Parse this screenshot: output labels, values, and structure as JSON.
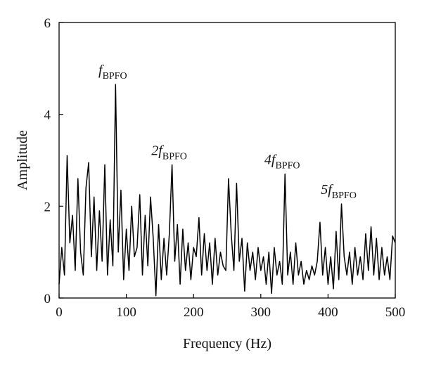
{
  "chart_data": {
    "type": "line",
    "x_label": "Frequency (Hz)",
    "y_label": "Amplitude",
    "xlim": [
      0,
      500
    ],
    "xticks": [
      0,
      100,
      200,
      300,
      400,
      500
    ],
    "ylim": [
      0,
      6
    ],
    "yticks": [
      0,
      2,
      4,
      6
    ],
    "color": "#000000",
    "x": [
      0,
      4,
      8,
      12,
      16,
      20,
      24,
      28,
      32,
      36,
      40,
      44,
      48,
      52,
      56,
      60,
      64,
      68,
      72,
      76,
      80,
      84,
      88,
      92,
      96,
      100,
      104,
      108,
      112,
      116,
      120,
      124,
      128,
      132,
      136,
      140,
      144,
      148,
      152,
      156,
      160,
      164,
      168,
      172,
      176,
      180,
      184,
      188,
      192,
      196,
      200,
      204,
      208,
      212,
      216,
      220,
      224,
      228,
      232,
      236,
      240,
      244,
      248,
      252,
      256,
      260,
      264,
      268,
      272,
      276,
      280,
      284,
      288,
      292,
      296,
      300,
      304,
      308,
      312,
      316,
      320,
      324,
      328,
      332,
      336,
      340,
      344,
      348,
      352,
      356,
      360,
      364,
      368,
      372,
      376,
      380,
      384,
      388,
      392,
      396,
      400,
      404,
      408,
      412,
      416,
      420,
      424,
      428,
      432,
      436,
      440,
      444,
      448,
      452,
      456,
      460,
      464,
      468,
      472,
      476,
      480,
      484,
      488,
      492,
      496,
      500
    ],
    "values": [
      0.3,
      1.1,
      0.5,
      3.1,
      1.2,
      1.8,
      0.6,
      2.6,
      1.0,
      0.5,
      2.4,
      2.95,
      0.9,
      2.2,
      0.6,
      1.9,
      0.8,
      2.9,
      0.5,
      1.7,
      0.7,
      4.65,
      1.0,
      2.35,
      0.4,
      1.5,
      0.6,
      2.0,
      0.9,
      1.1,
      2.25,
      0.5,
      1.8,
      0.7,
      2.2,
      1.3,
      0.05,
      1.6,
      0.4,
      1.3,
      0.5,
      1.4,
      2.9,
      0.8,
      1.6,
      0.3,
      1.5,
      0.6,
      1.2,
      0.4,
      1.1,
      0.9,
      1.75,
      0.5,
      1.4,
      0.6,
      1.2,
      0.3,
      1.3,
      0.5,
      1.0,
      0.7,
      0.6,
      2.6,
      1.4,
      0.6,
      2.5,
      0.8,
      1.3,
      0.15,
      1.2,
      0.6,
      1.0,
      0.4,
      1.1,
      0.6,
      0.9,
      0.3,
      1.0,
      0.1,
      1.1,
      0.5,
      0.8,
      0.3,
      2.7,
      0.5,
      1.0,
      0.3,
      1.2,
      0.5,
      0.8,
      0.3,
      0.6,
      0.4,
      0.7,
      0.5,
      0.8,
      1.65,
      0.5,
      1.1,
      0.3,
      0.9,
      0.2,
      1.45,
      0.4,
      2.05,
      0.9,
      0.5,
      1.0,
      0.3,
      1.1,
      0.5,
      0.9,
      0.4,
      1.4,
      0.6,
      1.55,
      0.5,
      1.3,
      0.4,
      1.1,
      0.5,
      0.9,
      0.4,
      1.35,
      1.2
    ],
    "annotations": [
      {
        "text": "f",
        "sub": "BPFO",
        "x": 84
      },
      {
        "text": "2f",
        "sub": "BPFO",
        "x": 168
      },
      {
        "text": "4f",
        "sub": "BPFO",
        "x": 336
      },
      {
        "text": "5f",
        "sub": "BPFO",
        "x": 420
      }
    ]
  }
}
